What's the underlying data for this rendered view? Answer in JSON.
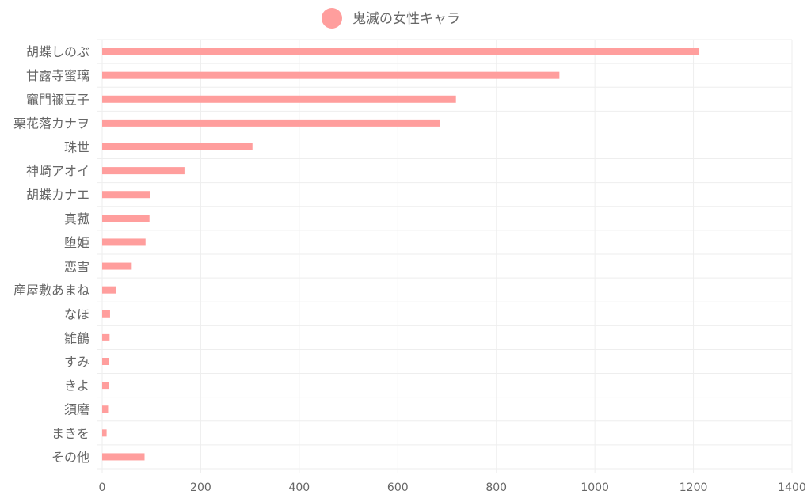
{
  "chart_data": {
    "type": "bar",
    "orientation": "horizontal",
    "title": "",
    "legend": [
      {
        "label": "鬼滅の女性キャラ",
        "color": "#ff9e9d"
      }
    ],
    "legend_position": "top-center",
    "categories": [
      "胡蝶しのぶ",
      "甘露寺蜜璃",
      "竈門禰豆子",
      "栗花落カナヲ",
      "珠世",
      "神崎アオイ",
      "胡蝶カナエ",
      "真菰",
      "堕姫",
      "恋雪",
      "産屋敷あまね",
      "なほ",
      "雛鶴",
      "すみ",
      "きよ",
      "須磨",
      "まきを",
      "その他"
    ],
    "series": [
      {
        "name": "鬼滅の女性キャラ",
        "values": [
          1212,
          928,
          718,
          685,
          305,
          167,
          97,
          96,
          88,
          60,
          28,
          16,
          15,
          14,
          13,
          12,
          9,
          86
        ],
        "color": "#ff9e9d"
      }
    ],
    "xlim": [
      0,
      1400
    ],
    "x_ticks": [
      "0",
      "200",
      "400",
      "600",
      "800",
      "1000",
      "1200",
      "1400"
    ],
    "grid": true
  }
}
